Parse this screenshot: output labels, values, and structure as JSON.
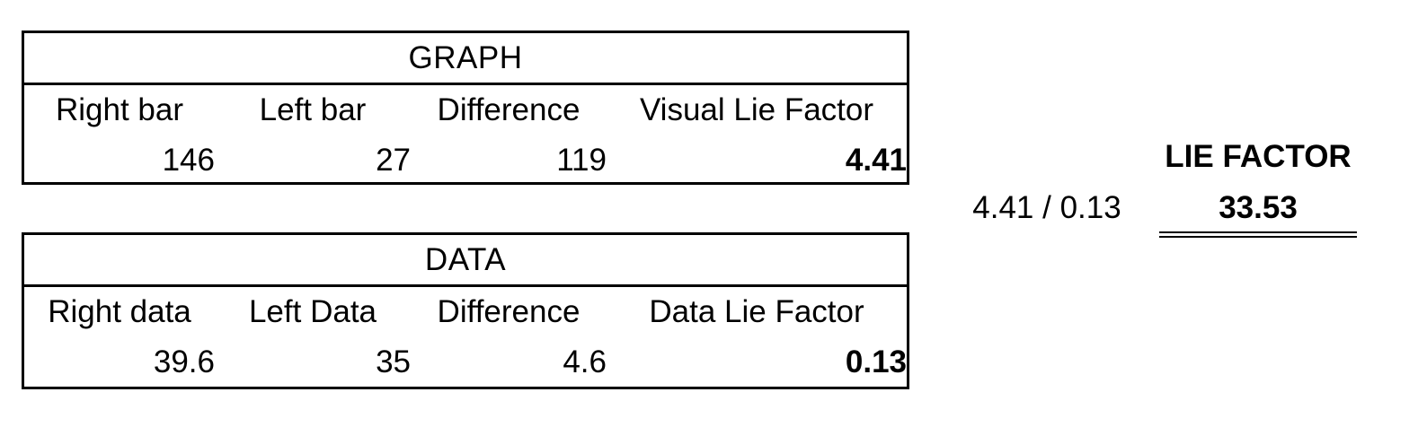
{
  "graph": {
    "title": "GRAPH",
    "headers": [
      "Right bar",
      "Left bar",
      "Difference",
      "Visual Lie Factor"
    ],
    "values": [
      "146",
      "27",
      "119",
      "4.41"
    ]
  },
  "data": {
    "title": "DATA",
    "headers": [
      "Right data",
      "Left Data",
      "Difference",
      "Data Lie Factor"
    ],
    "values": [
      "39.6",
      "35",
      "4.6",
      "0.13"
    ]
  },
  "lie_factor": {
    "title": "LIE FACTOR",
    "formula": "4.41 / 0.13",
    "result": "33.53"
  }
}
